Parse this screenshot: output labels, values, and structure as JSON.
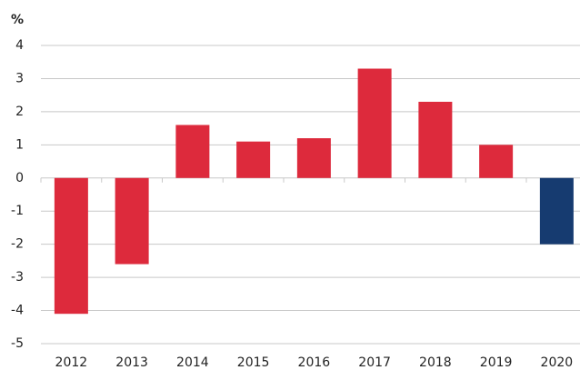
{
  "chart_data": {
    "type": "bar",
    "unit_label": "%",
    "categories": [
      "2012",
      "2013",
      "2014",
      "2015",
      "2016",
      "2017",
      "2018",
      "2019",
      "2020"
    ],
    "values": [
      -4.1,
      -2.6,
      1.6,
      1.1,
      1.2,
      3.3,
      2.3,
      1.0,
      -2.0
    ],
    "colors": [
      "#dd2a3c",
      "#dd2a3c",
      "#dd2a3c",
      "#dd2a3c",
      "#dd2a3c",
      "#dd2a3c",
      "#dd2a3c",
      "#dd2a3c",
      "#163b70"
    ],
    "ylim": [
      -5,
      4
    ],
    "yticks": [
      -5,
      -4,
      -3,
      -2,
      -1,
      0,
      1,
      2,
      3,
      4
    ],
    "grid": true
  }
}
